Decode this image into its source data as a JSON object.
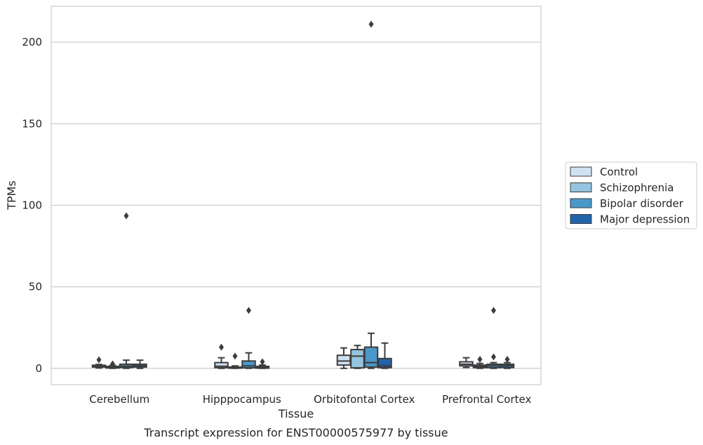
{
  "chart_data": {
    "type": "box",
    "title": "Transcript expression for ENST00000575977 by tissue",
    "xlabel": "Tissue",
    "ylabel": "TPMs",
    "ylim": [
      -10,
      222
    ],
    "yticks": [
      0,
      50,
      100,
      150,
      200
    ],
    "grid": "horizontal",
    "legend_position": "right",
    "categories": [
      "Cerebellum",
      "Hipppocampus",
      "Orbitofontal Cortex",
      "Prefrontal Cortex"
    ],
    "series": [
      {
        "name": "Control",
        "color": "#d0e1f2",
        "boxes": [
          {
            "whislo": 0.2,
            "q1": 0.8,
            "med": 1.3,
            "q3": 1.9,
            "whishi": 2.4,
            "fliers": [
              5.2
            ]
          },
          {
            "whislo": 0.0,
            "q1": 0.4,
            "med": 1.3,
            "q3": 3.5,
            "whishi": 6.5,
            "fliers": [
              13.0
            ]
          },
          {
            "whislo": 0.0,
            "q1": 2.0,
            "med": 4.5,
            "q3": 8.0,
            "whishi": 12.5,
            "fliers": []
          },
          {
            "whislo": 0.5,
            "q1": 1.5,
            "med": 2.5,
            "q3": 4.0,
            "whishi": 6.5,
            "fliers": []
          }
        ]
      },
      {
        "name": "Schizophrenia",
        "color": "#94c4df",
        "boxes": [
          {
            "whislo": 0.0,
            "q1": 0.2,
            "med": 0.7,
            "q3": 1.2,
            "whishi": 1.8,
            "fliers": [
              2.7
            ]
          },
          {
            "whislo": 0.0,
            "q1": 0.1,
            "med": 0.4,
            "q3": 0.8,
            "whishi": 1.5,
            "fliers": [
              7.5
            ]
          },
          {
            "whislo": 0.0,
            "q1": 0.3,
            "med": 7.5,
            "q3": 11.5,
            "whishi": 14.0,
            "fliers": []
          },
          {
            "whislo": 0.0,
            "q1": 0.4,
            "med": 1.2,
            "q3": 2.0,
            "whishi": 3.0,
            "fliers": [
              5.5
            ]
          }
        ]
      },
      {
        "name": "Bipolar disorder",
        "color": "#4a98c9",
        "boxes": [
          {
            "whislo": 0.0,
            "q1": 0.5,
            "med": 1.3,
            "q3": 2.5,
            "whishi": 5.0,
            "fliers": [
              93.5
            ]
          },
          {
            "whislo": 0.0,
            "q1": 0.3,
            "med": 1.5,
            "q3": 4.5,
            "whishi": 9.5,
            "fliers": [
              35.5
            ]
          },
          {
            "whislo": 0.0,
            "q1": 0.8,
            "med": 3.5,
            "q3": 13.0,
            "whishi": 21.5,
            "fliers": [
              211.0
            ]
          },
          {
            "whislo": 0.0,
            "q1": 0.4,
            "med": 1.5,
            "q3": 2.5,
            "whishi": 3.5,
            "fliers": [
              7.0,
              35.5
            ]
          }
        ]
      },
      {
        "name": "Major depression",
        "color": "#2164ab",
        "boxes": [
          {
            "whislo": 0.0,
            "q1": 0.8,
            "med": 1.5,
            "q3": 2.5,
            "whishi": 5.0,
            "fliers": []
          },
          {
            "whislo": 0.0,
            "q1": 0.1,
            "med": 0.5,
            "q3": 1.2,
            "whishi": 2.0,
            "fliers": [
              4.0
            ]
          },
          {
            "whislo": 0.0,
            "q1": 0.4,
            "med": 1.5,
            "q3": 6.0,
            "whishi": 15.5,
            "fliers": []
          },
          {
            "whislo": 0.0,
            "q1": 0.5,
            "med": 1.8,
            "q3": 2.5,
            "whishi": 3.5,
            "fliers": [
              5.5
            ]
          }
        ]
      }
    ]
  }
}
